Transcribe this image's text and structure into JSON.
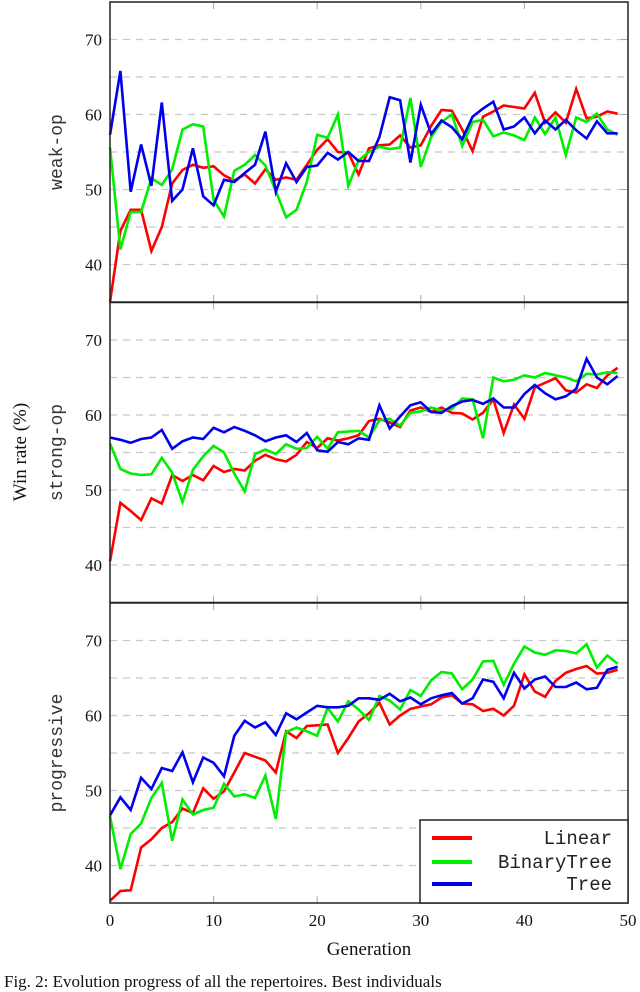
{
  "chart_data": {
    "type": "line",
    "title": "",
    "xlabel": "Generation",
    "ylabel": "Win rate (%)",
    "xlim": [
      0,
      50
    ],
    "ylim": [
      35,
      75
    ],
    "x_ticks": [
      0,
      10,
      20,
      30,
      40,
      50
    ],
    "y_ticks": [
      40,
      50,
      60,
      70
    ],
    "grid": "horizontal dashed every 5",
    "legend": {
      "position": "lower right of bottom panel",
      "entries": [
        "Linear",
        "BinaryTree",
        "Tree"
      ]
    },
    "colors": {
      "Linear": "#ff0000",
      "BinaryTree": "#00ee00",
      "Tree": "#0000ee"
    },
    "x": [
      0,
      1,
      2,
      3,
      4,
      5,
      6,
      7,
      8,
      9,
      10,
      11,
      12,
      13,
      14,
      15,
      16,
      17,
      18,
      19,
      20,
      21,
      22,
      23,
      24,
      25,
      26,
      27,
      28,
      29,
      30,
      31,
      32,
      33,
      34,
      35,
      36,
      37,
      38,
      39,
      40,
      41,
      42,
      43,
      44,
      45,
      46,
      47,
      48,
      49
    ],
    "panels": [
      {
        "name": "weak-op",
        "series": [
          {
            "name": "Linear",
            "values": [
              35,
              44.5,
              47.3,
              47.3,
              41.8,
              45,
              50.8,
              52.6,
              53.3,
              52.9,
              53.1,
              51.9,
              51.2,
              52,
              50.8,
              52.7,
              51.3,
              51.6,
              51.3,
              53.3,
              55.3,
              56.7,
              55,
              54.9,
              52,
              55.5,
              55.9,
              56,
              57.2,
              55.6,
              55.9,
              58.5,
              60.6,
              60.5,
              58,
              55.1,
              59.7,
              60.4,
              61.2,
              61,
              60.8,
              62.9,
              58.9,
              60.3,
              58.9,
              63.4,
              59.5,
              59.7,
              60.4,
              60.1
            ]
          },
          {
            "name": "BinaryTree",
            "values": [
              55.6,
              42,
              47,
              47,
              51.5,
              50.6,
              52.7,
              58,
              58.7,
              58.4,
              48.6,
              46.4,
              52.5,
              53.3,
              54.6,
              53.2,
              49.8,
              46.3,
              47.3,
              51,
              57.3,
              56.9,
              60,
              50.5,
              53.9,
              55,
              55.7,
              55.4,
              55.6,
              62.2,
              53,
              57,
              59,
              60,
              55.8,
              59,
              59.3,
              57.1,
              57.6,
              57.2,
              56.6,
              59.6,
              57.4,
              59.6,
              54.6,
              59.6,
              59,
              60.1,
              58,
              57.3
            ]
          },
          {
            "name": "Tree",
            "values": [
              57.3,
              65.8,
              49.7,
              56,
              50.5,
              61.6,
              48.5,
              50,
              55.5,
              49.1,
              47.9,
              51.3,
              51,
              52.2,
              53.3,
              57.7,
              49.7,
              53.5,
              51,
              53,
              53.2,
              54.9,
              54,
              55,
              53.8,
              53.8,
              57,
              62.3,
              61.9,
              53.6,
              61.3,
              57.4,
              59.2,
              58.3,
              56.7,
              59.7,
              60.8,
              61.7,
              58,
              58.4,
              59.6,
              57.5,
              59.2,
              58,
              59.3,
              57.9,
              56.8,
              59.1,
              57.5,
              57.5
            ]
          }
        ]
      },
      {
        "name": "strong-op",
        "series": [
          {
            "name": "Linear",
            "values": [
              40.5,
              48.3,
              47.2,
              46,
              48.9,
              48.2,
              52,
              51.2,
              52,
              51.3,
              53.2,
              52.4,
              52.8,
              52.6,
              53.9,
              54.7,
              54.1,
              53.8,
              54.7,
              56.4,
              55.6,
              56.9,
              56.6,
              56.9,
              57.3,
              59.2,
              59.5,
              59,
              58.4,
              60.6,
              61,
              60.4,
              61,
              60.3,
              60.2,
              59.4,
              60.3,
              62.1,
              57.6,
              61.4,
              59.5,
              63.7,
              64.3,
              64.9,
              63.3,
              63,
              64.1,
              63.6,
              65.3,
              66.3
            ]
          },
          {
            "name": "BinaryTree",
            "values": [
              56.2,
              52.8,
              52.2,
              52,
              52.1,
              54.3,
              52.3,
              48.4,
              52.7,
              54.5,
              55.9,
              55,
              52.2,
              49.8,
              54.8,
              55.4,
              54.8,
              56.1,
              55.5,
              55.6,
              57.1,
              55.5,
              57.7,
              57.8,
              57.9,
              57,
              59.3,
              59.5,
              58.6,
              60.3,
              60.5,
              61,
              60.6,
              60.8,
              62.2,
              62.1,
              56.9,
              65,
              64.5,
              64.7,
              65.3,
              65,
              65.6,
              65.3,
              65,
              64.5,
              65.5,
              65.4,
              65.7,
              65.6
            ]
          },
          {
            "name": "Tree",
            "values": [
              57,
              56.7,
              56.3,
              56.8,
              57,
              58,
              55.5,
              56.5,
              57,
              56.8,
              58.3,
              57.7,
              58.4,
              57.9,
              57.3,
              56.5,
              57,
              57.3,
              56.4,
              57.6,
              55.3,
              55.1,
              56.4,
              56.1,
              56.9,
              56.7,
              61.3,
              58.2,
              59.8,
              61.3,
              61.7,
              60.4,
              60.3,
              61.2,
              61.8,
              62,
              61.5,
              62.2,
              61,
              61,
              62.8,
              64,
              62.9,
              62.1,
              62.5,
              63.5,
              67.5,
              65,
              64.1,
              65.2
            ]
          }
        ]
      },
      {
        "name": "progressive",
        "series": [
          {
            "name": "Linear",
            "values": [
              35.3,
              36.6,
              36.7,
              42.4,
              43.5,
              45,
              45.8,
              47.6,
              47,
              50.3,
              48.9,
              49.9,
              52.4,
              55,
              54.5,
              54,
              52.4,
              57.9,
              57,
              58.6,
              58.7,
              58.8,
              55,
              57,
              59.2,
              60.3,
              61.7,
              58.8,
              60,
              60.9,
              61.2,
              61.5,
              62.4,
              62.7,
              61.6,
              61.5,
              60.6,
              60.9,
              60,
              61.3,
              65.5,
              63.2,
              62.5,
              64.6,
              65.7,
              66.2,
              66.6,
              65.6,
              65.7,
              66.1
            ]
          },
          {
            "name": "BinaryTree",
            "values": [
              46.6,
              39.5,
              44.2,
              45.6,
              49,
              51,
              43.3,
              48.8,
              46.8,
              47.4,
              47.7,
              50.9,
              49.2,
              49.5,
              49,
              52,
              46.2,
              57.8,
              58.4,
              57.9,
              57.3,
              61,
              59.2,
              61.9,
              60.8,
              59.4,
              62.6,
              62,
              60.8,
              63.4,
              62.6,
              64.7,
              65.8,
              65.6,
              63.5,
              64.8,
              67.2,
              67.3,
              64.1,
              66.9,
              69.2,
              68.4,
              68.1,
              68.7,
              68.6,
              68.3,
              69.5,
              66.4,
              68,
              66.9
            ]
          },
          {
            "name": "Tree",
            "values": [
              46.7,
              49.1,
              47.4,
              51.7,
              50.2,
              53,
              52.6,
              55.1,
              51.1,
              54.4,
              53.7,
              51.9,
              57.3,
              59.3,
              58.4,
              59.1,
              57.4,
              60.3,
              59.5,
              60.4,
              61.3,
              61.1,
              61.1,
              61.3,
              62.3,
              62.3,
              62.1,
              62.9,
              61.9,
              62.4,
              61.5,
              62.3,
              62.7,
              63,
              61.6,
              62.3,
              64.8,
              64.5,
              62.3,
              65.7,
              63.6,
              64.8,
              65.2,
              63.8,
              63.8,
              64.4,
              63.5,
              63.7,
              66.1,
              66.5
            ]
          }
        ]
      }
    ]
  },
  "axes": {
    "xlabel": "Generation",
    "ylabel": "Win rate (%)",
    "x_tick_labels": [
      "0",
      "10",
      "20",
      "30",
      "40",
      "50"
    ],
    "y_tick_labels": [
      "40",
      "50",
      "60",
      "70"
    ],
    "panel_labels": [
      "weak-op",
      "strong-op",
      "progressive"
    ]
  },
  "legend": {
    "items": [
      {
        "label": "Linear"
      },
      {
        "label": "BinaryTree"
      },
      {
        "label": "Tree"
      }
    ]
  },
  "caption": {
    "text": "Fig. 2: Evolution progress of all the repertoires. Best individuals"
  }
}
